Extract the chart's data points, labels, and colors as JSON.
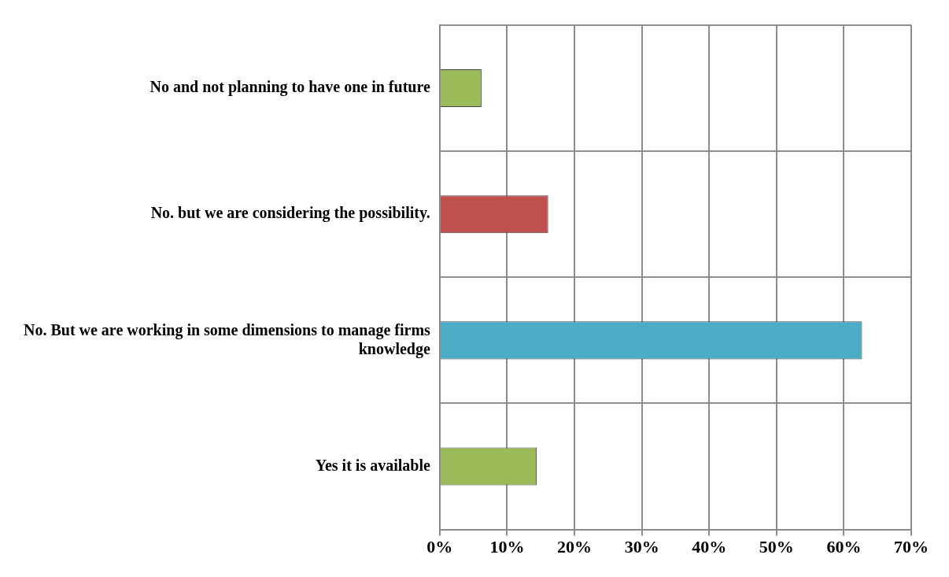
{
  "chart_data": {
    "type": "bar",
    "orientation": "horizontal",
    "categories": [
      "No and not planning to have one in future",
      "No. but we are considering the possibility.",
      "No. But we are working in some dimensions to manage firms knowledge",
      "Yes it is available"
    ],
    "values": [
      6.2,
      16.1,
      62.7,
      14.4
    ],
    "colors": [
      "#9bbb59",
      "#c0504d",
      "#4bacc6",
      "#9bbb59"
    ],
    "xlim": [
      0,
      70
    ],
    "xticks": [
      {
        "value": 0,
        "label": "0%"
      },
      {
        "value": 10,
        "label": "10%"
      },
      {
        "value": 20,
        "label": "20%"
      },
      {
        "value": 30,
        "label": "30%"
      },
      {
        "value": 40,
        "label": "40%"
      },
      {
        "value": 50,
        "label": "50%"
      },
      {
        "value": 60,
        "label": "60%"
      },
      {
        "value": 70,
        "label": "70%"
      }
    ],
    "grid": true,
    "legend": false
  }
}
